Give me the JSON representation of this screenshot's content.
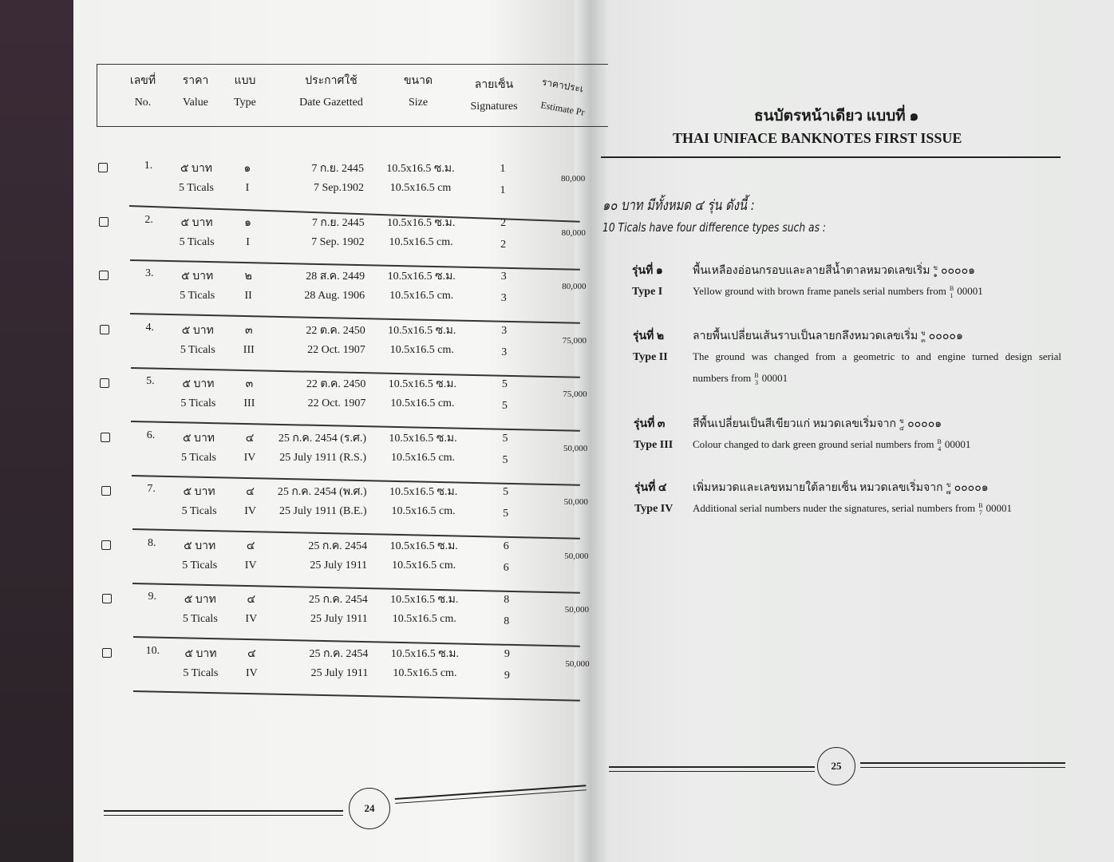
{
  "left_page": {
    "headers": [
      {
        "th": "เลขที่",
        "en": "No."
      },
      {
        "th": "ราคา",
        "en": "Value"
      },
      {
        "th": "แบบ",
        "en": "Type"
      },
      {
        "th": "ประกาศใช้",
        "en": "Date Gazetted"
      },
      {
        "th": "ขนาด",
        "en": "Size"
      },
      {
        "th": "ลายเซ็น",
        "en": "Signatures"
      },
      {
        "th": "ราคาประเ",
        "en": "Estimate Pr"
      }
    ],
    "rows": [
      {
        "no": "1.",
        "value_th": "๕ บาท",
        "value_en": "5 Ticals",
        "type_th": "๑",
        "type_en": "I",
        "date_th": "7 ก.ย. 2445",
        "date_en": "7 Sep.1902",
        "size_th": "10.5x16.5 ซ.ม.",
        "size_en": "10.5x16.5 cm",
        "sig_th": "1",
        "sig_en": "1",
        "price": "80,000"
      },
      {
        "no": "2.",
        "value_th": "๕ บาท",
        "value_en": "5 Ticals",
        "type_th": "๑",
        "type_en": "I",
        "date_th": "7 ก.ย. 2445",
        "date_en": "7 Sep. 1902",
        "size_th": "10.5x16.5 ซ.ม.",
        "size_en": "10.5x16.5 cm.",
        "sig_th": "2",
        "sig_en": "2",
        "price": "80,000"
      },
      {
        "no": "3.",
        "value_th": "๕ บาท",
        "value_en": "5 Ticals",
        "type_th": "๒",
        "type_en": "II",
        "date_th": "28 ส.ค. 2449",
        "date_en": "28 Aug. 1906",
        "size_th": "10.5x16.5 ซ.ม.",
        "size_en": "10.5x16.5 cm.",
        "sig_th": "3",
        "sig_en": "3",
        "price": "80,000"
      },
      {
        "no": "4.",
        "value_th": "๕ บาท",
        "value_en": "5 Ticals",
        "type_th": "๓",
        "type_en": "III",
        "date_th": "22 ต.ค. 2450",
        "date_en": "22 Oct. 1907",
        "size_th": "10.5x16.5 ซ.ม.",
        "size_en": "10.5x16.5 cm.",
        "sig_th": "3",
        "sig_en": "3",
        "price": "75,000"
      },
      {
        "no": "5.",
        "value_th": "๕ บาท",
        "value_en": "5 Ticals",
        "type_th": "๓",
        "type_en": "III",
        "date_th": "22 ต.ค. 2450",
        "date_en": "22 Oct. 1907",
        "size_th": "10.5x16.5 ซ.ม.",
        "size_en": "10.5x16.5 cm.",
        "sig_th": "5",
        "sig_en": "5",
        "price": "75,000"
      },
      {
        "no": "6.",
        "value_th": "๕ บาท",
        "value_en": "5 Ticals",
        "type_th": "๔",
        "type_en": "IV",
        "date_th": "25 ก.ค. 2454 (ร.ศ.)",
        "date_en": "25 July 1911 (R.S.)",
        "size_th": "10.5x16.5 ซ.ม.",
        "size_en": "10.5x16.5 cm.",
        "sig_th": "5",
        "sig_en": "5",
        "price": "50,000"
      },
      {
        "no": "7.",
        "value_th": "๕ บาท",
        "value_en": "5 Ticals",
        "type_th": "๔",
        "type_en": "IV",
        "date_th": "25 ก.ค. 2454 (พ.ศ.)",
        "date_en": "25 July 1911 (B.E.)",
        "size_th": "10.5x16.5 ซ.ม.",
        "size_en": "10.5x16.5 cm.",
        "sig_th": "5",
        "sig_en": "5",
        "price": "50,000"
      },
      {
        "no": "8.",
        "value_th": "๕ บาท",
        "value_en": "5 Ticals",
        "type_th": "๔",
        "type_en": "IV",
        "date_th": "25 ก.ค. 2454",
        "date_en": "25 July 1911",
        "size_th": "10.5x16.5 ซ.ม.",
        "size_en": "10.5x16.5 cm.",
        "sig_th": "6",
        "sig_en": "6",
        "price": "50,000"
      },
      {
        "no": "9.",
        "value_th": "๕ บาท",
        "value_en": "5 Ticals",
        "type_th": "๔",
        "type_en": "IV",
        "date_th": "25 ก.ค. 2454",
        "date_en": "25 July 1911",
        "size_th": "10.5x16.5 ซ.ม.",
        "size_en": "10.5x16.5 cm.",
        "sig_th": "8",
        "sig_en": "8",
        "price": "50,000"
      },
      {
        "no": "10.",
        "value_th": "๕ บาท",
        "value_en": "5 Ticals",
        "type_th": "๔",
        "type_en": "IV",
        "date_th": "25 ก.ค. 2454",
        "date_en": "25 July 1911",
        "size_th": "10.5x16.5 ซ.ม.",
        "size_en": "10.5x16.5 cm.",
        "sig_th": "9",
        "sig_en": "9",
        "price": "50,000"
      }
    ],
    "page_number": "24"
  },
  "right_page": {
    "title_th": "ธนบัตรหน้าเดียว แบบที่ ๑",
    "title_en": "THAI UNIFACE BANKNOTES FIRST ISSUE",
    "intro_th": "๑๐ บาท มีทั้งหมด ๔ รุ่น ดังนี้ :",
    "intro_en": "10 Ticals have four difference types such as :",
    "types": [
      {
        "label_th": "รุ่นที่ ๑",
        "label_en": "Type I",
        "text_th": "พื้นเหลืองอ่อนกรอบและลายสีน้ำตาลหมวดเลขเริ่ม",
        "serial_th_top": "ข",
        "serial_th_bottom": "๑",
        "serial_th": "๐๐๐๐๑",
        "text_en": "Yellow ground with brown frame panels serial numbers from",
        "serial_en_top": "B",
        "serial_en_bottom": "1",
        "serial_en": "00001"
      },
      {
        "label_th": "รุ่นที่ ๒",
        "label_en": "Type II",
        "text_th": "ลายพื้นเปลี่ยนเส้นราบเป็นลายกลึงหมวดเลขเริ่ม",
        "serial_th_top": "ข",
        "serial_th_bottom": "๓",
        "serial_th": "๐๐๐๐๑",
        "text_en": "The ground was changed from a geometric to and engine turned design serial",
        "text_en_2": "numbers from",
        "serial_en_top": "B",
        "serial_en_bottom": "3",
        "serial_en": "00001"
      },
      {
        "label_th": "รุ่นที่ ๓",
        "label_en": "Type III",
        "text_th": "สีพื้นเปลี่ยนเป็นสีเขียวแก่ หมวดเลขเริ่มจาก",
        "serial_th_top": "ข",
        "serial_th_bottom": "๔",
        "serial_th": "๐๐๐๐๑",
        "text_en": "Colour changed to dark green ground serial numbers from",
        "serial_en_top": "B",
        "serial_en_bottom": "4",
        "serial_en": "00001"
      },
      {
        "label_th": "รุ่นที่ ๔",
        "label_en": "Type IV",
        "text_th": "เพิ่มหมวดและเลขหมายใต้ลายเซ็น หมวดเลขเริ่มจาก",
        "serial_th_top": "ข",
        "serial_th_bottom": "๗",
        "serial_th": "๐๐๐๐๑",
        "text_en": "Additional serial numbers nuder the signatures, serial numbers from",
        "serial_en_top": "B",
        "serial_en_bottom": "7",
        "serial_en": "00001"
      }
    ],
    "page_number": "25"
  }
}
